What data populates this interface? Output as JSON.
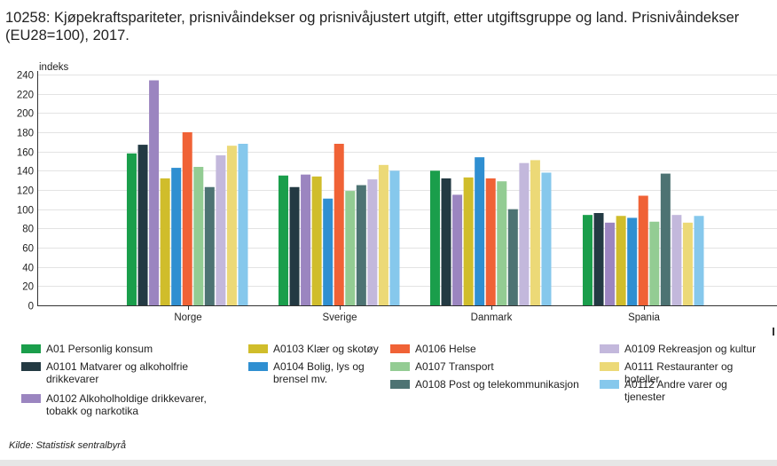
{
  "title": "10258: Kjøpekraftspariteter, prisnivåindekser og prisnivåjustert utgift, etter utgiftsgruppe og land. Prisnivåindekser (EU28=100), 2017.",
  "source": "Kilde:  Statistisk sentralbyrå",
  "chart_data": {
    "type": "bar",
    "title": "10258: Kjøpekraftspariteter, prisnivåindekser og prisnivåjustert utgift, etter utgiftsgruppe og land. Prisnivåindekser (EU28=100), 2017.",
    "ylabel": "indeks",
    "xlabel": "",
    "ylim": [
      0,
      240
    ],
    "yticks": [
      0,
      20,
      40,
      60,
      80,
      100,
      120,
      140,
      160,
      180,
      200,
      220,
      240
    ],
    "grid": true,
    "legend_position": "bottom",
    "categories": [
      "Norge",
      "Sverige",
      "Danmark",
      "Spania"
    ],
    "series": [
      {
        "name": "A01 Personlig konsum",
        "color": "#1a9e4b",
        "values": [
          158,
          135,
          140,
          94
        ]
      },
      {
        "name": "A0101 Matvarer og alkoholfrie drikkevarer",
        "color": "#233a43",
        "values": [
          167,
          123,
          132,
          96
        ]
      },
      {
        "name": "A0102 Alkoholholdige drikkevarer, tobakk og narkotika",
        "color": "#9b85c0",
        "values": [
          234,
          136,
          115,
          86
        ]
      },
      {
        "name": "A0103 Klær og skotøy",
        "color": "#d0bd2b",
        "values": [
          132,
          134,
          133,
          93
        ]
      },
      {
        "name": "A0104 Bolig, lys og brensel mv.",
        "color": "#2f8fd1",
        "values": [
          143,
          111,
          154,
          91
        ]
      },
      {
        "name": "A0106 Helse",
        "color": "#f06236",
        "values": [
          180,
          168,
          132,
          114
        ]
      },
      {
        "name": "A0107 Transport",
        "color": "#93cc93",
        "values": [
          144,
          119,
          129,
          87
        ]
      },
      {
        "name": "A0108 Post og telekommunikasjon",
        "color": "#4d7373",
        "values": [
          123,
          125,
          100,
          137
        ]
      },
      {
        "name": "A0109 Rekreasjon og kultur",
        "color": "#c3b8dc",
        "values": [
          156,
          131,
          148,
          94
        ]
      },
      {
        "name": "A0111 Restauranter og hoteller",
        "color": "#ecd977",
        "values": [
          166,
          146,
          151,
          86
        ]
      },
      {
        "name": "A0112 Andre varer og tjenester",
        "color": "#86c8ec",
        "values": [
          168,
          140,
          138,
          93
        ]
      }
    ]
  }
}
